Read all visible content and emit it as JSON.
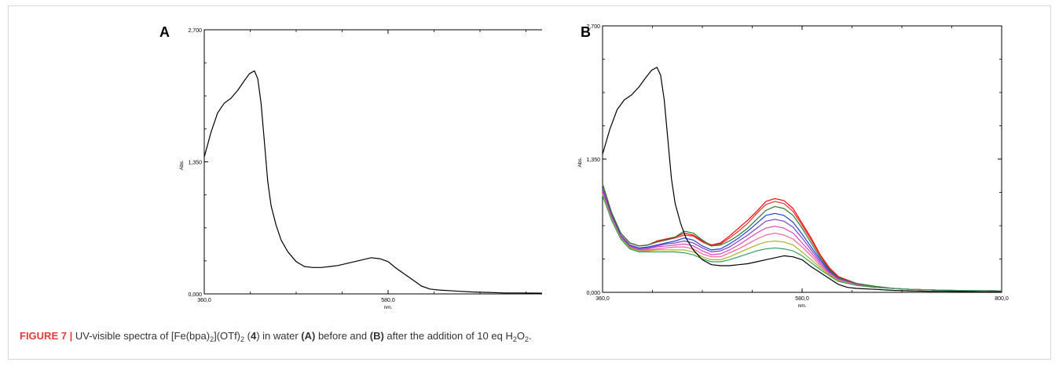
{
  "panels": [
    {
      "letter": "A",
      "ylabel": "Abs.",
      "xlabel": "nm.",
      "yticks": [
        "2,700",
        "1,350",
        "0,000"
      ],
      "xticks": [
        "360,0",
        "580,0",
        "800,0"
      ]
    },
    {
      "letter": "B",
      "ylabel": "Abs.",
      "xlabel": "nm.",
      "yticks": [
        "2,700",
        "1,350",
        "0,000"
      ],
      "xticks": [
        "360,0",
        "580,0",
        "800,0"
      ]
    }
  ],
  "caption": {
    "figure_label": "FIGURE 7 |",
    "text_1": " UV-visible spectra of [Fe(bpa)",
    "sub_1": "2",
    "text_2": "](OTf)",
    "sub_2": "2",
    "text_3": " (",
    "compound": "4",
    "text_4": ") in water ",
    "panel_a": "(A)",
    "text_5": " before and ",
    "panel_b": "(B)",
    "text_6": " after the addition of 10 eq H",
    "sub_3": "2",
    "text_7": "O",
    "sub_4": "2",
    "text_8": "."
  },
  "chart_data": [
    {
      "type": "line",
      "panel": "A",
      "xlabel": "nm.",
      "ylabel": "Abs.",
      "xlim": [
        360,
        800
      ],
      "ylim": [
        0,
        2.7
      ],
      "series": [
        {
          "color": "#000000",
          "x": [
            360,
            368,
            376,
            384,
            392,
            400,
            408,
            414,
            420,
            424,
            428,
            432,
            436,
            440,
            446,
            452,
            460,
            470,
            480,
            490,
            500,
            510,
            520,
            530,
            540,
            550,
            560,
            570,
            580,
            590,
            600,
            610,
            620,
            630,
            640,
            660,
            680,
            700,
            720,
            740,
            760,
            780,
            800
          ],
          "y": [
            1.4,
            1.65,
            1.85,
            1.95,
            2.0,
            2.08,
            2.18,
            2.25,
            2.28,
            2.2,
            1.95,
            1.55,
            1.15,
            0.9,
            0.7,
            0.55,
            0.43,
            0.33,
            0.28,
            0.27,
            0.27,
            0.28,
            0.29,
            0.31,
            0.33,
            0.35,
            0.37,
            0.36,
            0.33,
            0.26,
            0.2,
            0.14,
            0.08,
            0.05,
            0.04,
            0.03,
            0.02,
            0.015,
            0.01,
            0.01,
            0.008,
            0.005,
            0.005
          ]
        }
      ]
    },
    {
      "type": "line",
      "panel": "B",
      "xlabel": "nm.",
      "ylabel": "Abs.",
      "xlim": [
        360,
        800
      ],
      "ylim": [
        0,
        2.7
      ],
      "x": [
        360,
        370,
        380,
        390,
        400,
        410,
        420,
        430,
        440,
        450,
        460,
        470,
        480,
        490,
        500,
        510,
        520,
        530,
        540,
        550,
        560,
        570,
        580,
        590,
        600,
        610,
        620,
        640,
        660,
        680,
        700,
        740,
        800
      ],
      "series": [
        {
          "color": "#000000",
          "x": [
            360,
            368,
            376,
            384,
            392,
            400,
            408,
            414,
            420,
            424,
            428,
            432,
            436,
            440,
            446,
            452,
            460,
            470,
            480,
            490,
            500,
            510,
            520,
            530,
            540,
            550,
            560,
            570,
            580,
            590,
            600,
            610,
            620,
            630,
            640,
            660,
            680,
            700,
            720,
            740,
            760,
            780,
            800
          ],
          "y": [
            1.4,
            1.65,
            1.85,
            1.95,
            2.0,
            2.08,
            2.18,
            2.25,
            2.28,
            2.2,
            1.95,
            1.55,
            1.15,
            0.9,
            0.7,
            0.55,
            0.43,
            0.33,
            0.28,
            0.27,
            0.27,
            0.28,
            0.29,
            0.31,
            0.33,
            0.35,
            0.37,
            0.36,
            0.33,
            0.26,
            0.2,
            0.14,
            0.08,
            0.05,
            0.04,
            0.03,
            0.02,
            0.015,
            0.01,
            0.01,
            0.008,
            0.005,
            0.005
          ]
        },
        {
          "color": "#ff0000",
          "y": [
            1.1,
            0.8,
            0.6,
            0.5,
            0.47,
            0.48,
            0.52,
            0.54,
            0.56,
            0.6,
            0.58,
            0.52,
            0.48,
            0.5,
            0.57,
            0.65,
            0.73,
            0.82,
            0.92,
            0.95,
            0.93,
            0.85,
            0.7,
            0.55,
            0.38,
            0.25,
            0.16,
            0.09,
            0.06,
            0.04,
            0.03,
            0.02,
            0.015
          ]
        },
        {
          "color": "#e03030",
          "y": [
            1.09,
            0.8,
            0.6,
            0.5,
            0.47,
            0.48,
            0.51,
            0.53,
            0.55,
            0.58,
            0.57,
            0.51,
            0.47,
            0.49,
            0.55,
            0.62,
            0.7,
            0.8,
            0.89,
            0.92,
            0.9,
            0.82,
            0.68,
            0.53,
            0.37,
            0.24,
            0.15,
            0.09,
            0.06,
            0.04,
            0.03,
            0.02,
            0.015
          ]
        },
        {
          "color": "#2a7a2a",
          "y": [
            1.1,
            0.81,
            0.6,
            0.5,
            0.47,
            0.48,
            0.51,
            0.53,
            0.56,
            0.62,
            0.6,
            0.53,
            0.47,
            0.48,
            0.52,
            0.58,
            0.65,
            0.74,
            0.83,
            0.87,
            0.85,
            0.78,
            0.65,
            0.5,
            0.35,
            0.23,
            0.15,
            0.09,
            0.06,
            0.04,
            0.03,
            0.02,
            0.015
          ]
        },
        {
          "color": "#2040e0",
          "y": [
            1.05,
            0.78,
            0.58,
            0.48,
            0.45,
            0.46,
            0.48,
            0.5,
            0.52,
            0.55,
            0.53,
            0.47,
            0.43,
            0.44,
            0.49,
            0.55,
            0.62,
            0.7,
            0.78,
            0.8,
            0.78,
            0.71,
            0.59,
            0.46,
            0.33,
            0.22,
            0.14,
            0.08,
            0.05,
            0.04,
            0.03,
            0.02,
            0.015
          ]
        },
        {
          "color": "#8040c0",
          "y": [
            1.03,
            0.77,
            0.57,
            0.47,
            0.44,
            0.45,
            0.47,
            0.49,
            0.5,
            0.52,
            0.5,
            0.45,
            0.41,
            0.42,
            0.46,
            0.52,
            0.58,
            0.65,
            0.72,
            0.74,
            0.72,
            0.66,
            0.55,
            0.43,
            0.31,
            0.21,
            0.14,
            0.08,
            0.05,
            0.04,
            0.03,
            0.02,
            0.015
          ]
        },
        {
          "color": "#e040c0",
          "y": [
            1.02,
            0.76,
            0.56,
            0.46,
            0.43,
            0.44,
            0.46,
            0.47,
            0.48,
            0.49,
            0.47,
            0.42,
            0.38,
            0.39,
            0.43,
            0.48,
            0.54,
            0.6,
            0.65,
            0.67,
            0.65,
            0.6,
            0.5,
            0.4,
            0.29,
            0.2,
            0.13,
            0.08,
            0.05,
            0.04,
            0.03,
            0.02,
            0.015
          ]
        },
        {
          "color": "#f060a0",
          "y": [
            1.0,
            0.75,
            0.55,
            0.45,
            0.42,
            0.43,
            0.44,
            0.45,
            0.46,
            0.46,
            0.44,
            0.39,
            0.36,
            0.36,
            0.4,
            0.44,
            0.49,
            0.54,
            0.58,
            0.6,
            0.58,
            0.54,
            0.46,
            0.37,
            0.27,
            0.19,
            0.12,
            0.07,
            0.05,
            0.04,
            0.03,
            0.02,
            0.015
          ]
        },
        {
          "color": "#b0b020",
          "y": [
            0.99,
            0.74,
            0.55,
            0.45,
            0.42,
            0.42,
            0.43,
            0.43,
            0.43,
            0.43,
            0.41,
            0.36,
            0.33,
            0.33,
            0.36,
            0.4,
            0.44,
            0.48,
            0.51,
            0.52,
            0.51,
            0.48,
            0.41,
            0.33,
            0.25,
            0.18,
            0.12,
            0.07,
            0.05,
            0.04,
            0.03,
            0.02,
            0.015
          ]
        },
        {
          "color": "#30a060",
          "y": [
            0.98,
            0.73,
            0.54,
            0.44,
            0.41,
            0.41,
            0.41,
            0.41,
            0.41,
            0.4,
            0.38,
            0.34,
            0.31,
            0.31,
            0.33,
            0.36,
            0.39,
            0.42,
            0.44,
            0.45,
            0.44,
            0.42,
            0.37,
            0.3,
            0.23,
            0.17,
            0.11,
            0.07,
            0.05,
            0.04,
            0.03,
            0.02,
            0.015
          ]
        }
      ]
    }
  ]
}
